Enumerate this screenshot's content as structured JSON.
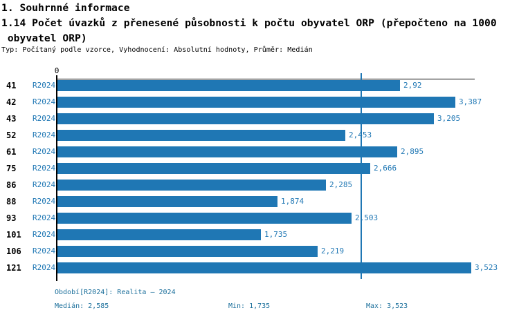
{
  "header": {
    "title_line1": "1. Souhrnné informace",
    "title_line2": "1.14 Počet úvazků z přenesené působnosti k počtu obyvatel ORP (přepočteno na 1000",
    "title_line3": " obyvatel ORP)",
    "meta": "Typ: Počítaný podle vzorce, Vyhodnocení: Absolutní hodnoty, Průměr: Medián"
  },
  "chart_data": {
    "type": "bar",
    "orientation": "horizontal",
    "title": "1.14 Počet úvazků z přenesené působnosti k počtu obyvatel ORP (přepočteno na 1000 obyvatel ORP)",
    "categories": [
      "41",
      "42",
      "43",
      "52",
      "61",
      "75",
      "86",
      "88",
      "93",
      "101",
      "106",
      "121"
    ],
    "series_label": "R2024",
    "values": [
      2.92,
      3.387,
      3.205,
      2.453,
      2.895,
      2.666,
      2.285,
      1.874,
      2.503,
      1.735,
      2.219,
      3.523
    ],
    "value_labels": [
      "2,92",
      "3,387",
      "3,205",
      "2,453",
      "2,895",
      "2,666",
      "2,285",
      "1,874",
      "2,503",
      "1,735",
      "2,219",
      "3,523"
    ],
    "xlim": [
      0,
      3.56
    ],
    "x_tick_labels": [
      "0"
    ],
    "median_line_value": 2.585,
    "grid": false,
    "legend_position": "none",
    "colors": {
      "bar": "#1f77b4",
      "median_line": "#1f77b4",
      "value_label": "#1f77b4",
      "series_label": "#1f77b4",
      "category_label": "#000000",
      "footer_text": "#1b6f9b",
      "axis": "#000000"
    }
  },
  "footer": {
    "period": "Období[R2024]: Realita – 2024",
    "median": "Medián: 2,585",
    "min": "Min: 1,735",
    "max": "Max: 3,523"
  }
}
